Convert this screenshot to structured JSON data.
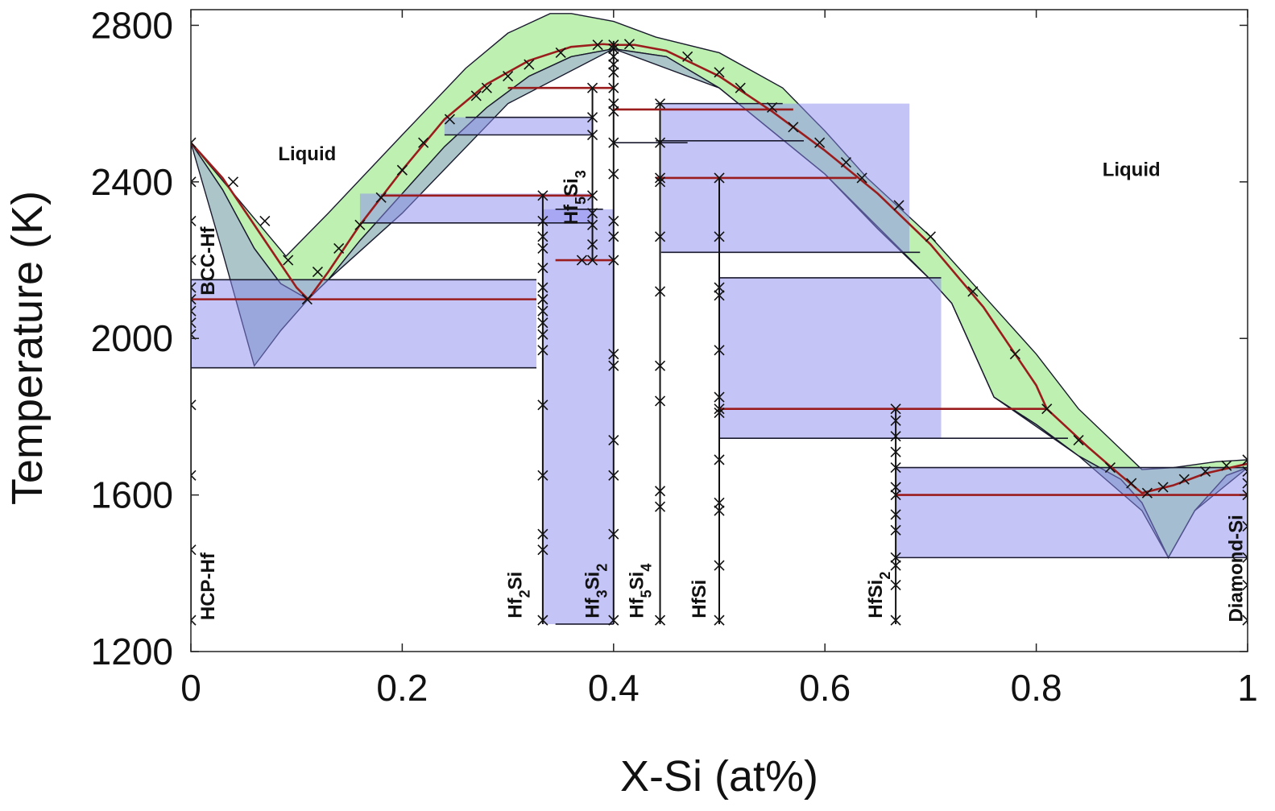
{
  "chart_data": {
    "type": "line",
    "title": "",
    "xlabel": "X-Si (at%)",
    "ylabel": "Temperature (K)",
    "xlim": [
      0,
      1
    ],
    "ylim": [
      1200,
      2840
    ],
    "xticks": [
      {
        "v": 0,
        "label": "0"
      },
      {
        "v": 0.2,
        "label": "0.2"
      },
      {
        "v": 0.4,
        "label": "0.4"
      },
      {
        "v": 0.6,
        "label": "0.6"
      },
      {
        "v": 0.8,
        "label": "0.8"
      },
      {
        "v": 1,
        "label": "1"
      }
    ],
    "yticks": [
      {
        "v": 1200,
        "label": "1200"
      },
      {
        "v": 1600,
        "label": "1600"
      },
      {
        "v": 2000,
        "label": "2000"
      },
      {
        "v": 2400,
        "label": "2400"
      },
      {
        "v": 2800,
        "label": "2800"
      }
    ],
    "grid": false,
    "colors": {
      "uncertainty_band": "#b7f0a8",
      "tie_region": "#8a8af0",
      "overlap": "#8fb1b6",
      "boundary": "#9b1c1c",
      "outline": "#1a1a2e",
      "marker": "#111111"
    },
    "region_labels": [
      {
        "text": "Liquid",
        "x": 0.11,
        "y": 2455
      },
      {
        "text": "Liquid",
        "x": 0.89,
        "y": 2415
      }
    ],
    "phase_labels": [
      {
        "text": "HCP-Hf",
        "main": "HCP-Hf",
        "x": 0.022,
        "y": 1280,
        "ymax": 1480
      },
      {
        "text": "BCC-Hf",
        "main": "BCC-Hf",
        "x": 0.022,
        "y": 2110,
        "ymax": 2330
      },
      {
        "text": "Hf2Si",
        "parts": [
          "Hf",
          "2",
          "Si"
        ],
        "x": 0.313,
        "y": 1285
      },
      {
        "text": "Hf3Si2",
        "parts": [
          "Hf",
          "3",
          "Si",
          "2"
        ],
        "x": 0.386,
        "y": 1285
      },
      {
        "text": "Hf5Si3",
        "parts": [
          "Hf",
          "5",
          "Si",
          "3"
        ],
        "x": 0.366,
        "y": 2290
      },
      {
        "text": "Hf5Si4",
        "parts": [
          "Hf",
          "5",
          "Si",
          "4"
        ],
        "x": 0.428,
        "y": 1285
      },
      {
        "text": "HfSi",
        "main": "HfSi",
        "x": 0.487,
        "y": 1285
      },
      {
        "text": "HfSi2",
        "parts": [
          "Hf",
          "Si",
          "2"
        ],
        "x": 0.654,
        "y": 1285
      },
      {
        "text": "Diamond-Si",
        "main": "Diamond-Si",
        "x": 0.995,
        "y": 1275
      }
    ],
    "series": [
      {
        "role": "liquidus",
        "values_x": [
          0,
          0.03,
          0.06,
          0.085,
          0.1,
          0.111,
          0.13,
          0.16,
          0.2,
          0.24,
          0.28,
          0.32,
          0.36,
          0.39,
          0.4,
          0.42,
          0.45,
          0.5,
          0.55,
          0.6,
          0.65,
          0.7,
          0.75,
          0.8,
          0.81,
          0.85,
          0.88,
          0.9,
          0.93,
          0.96,
          1.0
        ],
        "values_y": [
          2500,
          2410,
          2290,
          2190,
          2130,
          2100,
          2170,
          2290,
          2430,
          2560,
          2650,
          2710,
          2745,
          2752,
          2750,
          2750,
          2735,
          2670,
          2580,
          2480,
          2370,
          2240,
          2080,
          1880,
          1820,
          1720,
          1650,
          1605,
          1625,
          1655,
          1680
        ]
      },
      {
        "role": "uncertainty_upper",
        "values_x": [
          0,
          0.09,
          0.13,
          0.2,
          0.26,
          0.3,
          0.34,
          0.36,
          0.4,
          0.44,
          0.5,
          0.56,
          0.6,
          0.64,
          0.7,
          0.76,
          0.8,
          0.84,
          0.9,
          0.93,
          0.97,
          1.0
        ],
        "values_y": [
          2500,
          2210,
          2320,
          2520,
          2690,
          2780,
          2830,
          2830,
          2810,
          2770,
          2730,
          2640,
          2530,
          2410,
          2260,
          2080,
          1960,
          1820,
          1665,
          1670,
          1685,
          1690
        ]
      },
      {
        "role": "uncertainty_lower",
        "values_x": [
          0,
          0.03,
          0.06,
          0.085,
          0.111,
          0.13,
          0.16,
          0.2,
          0.24,
          0.28,
          0.32,
          0.36,
          0.4,
          0.45,
          0.5,
          0.55,
          0.6,
          0.65,
          0.7,
          0.72,
          0.76,
          0.8,
          0.84,
          0.88,
          0.9,
          0.925,
          0.95,
          0.98,
          1.0
        ],
        "values_y": [
          2500,
          2380,
          2230,
          2140,
          2100,
          2150,
          2250,
          2370,
          2490,
          2590,
          2670,
          2720,
          2740,
          2720,
          2640,
          2530,
          2420,
          2280,
          2150,
          2090,
          1850,
          1780,
          1700,
          1640,
          1580,
          1440,
          1560,
          1650,
          1670
        ]
      },
      {
        "role": "overlap_lower",
        "values_x": [
          0,
          0.03,
          0.06,
          0.085,
          0.111,
          0.13,
          0.2,
          0.3,
          0.4,
          0.5,
          0.6,
          0.7,
          0.72,
          0.76,
          0.84,
          0.9,
          0.925,
          0.95,
          1.0
        ],
        "values_y": [
          2500,
          2220,
          1930,
          2020,
          2100,
          2150,
          2320,
          2600,
          2740,
          2640,
          2420,
          2150,
          2090,
          1850,
          1700,
          1560,
          1440,
          1560,
          1670
        ]
      }
    ],
    "tie_regions": [
      {
        "x0": 0.0,
        "x1": 0.327,
        "y0": 1925,
        "y1": 2150
      },
      {
        "x0": 0.16,
        "x1": 0.38,
        "y0": 2295,
        "y1": 2370
      },
      {
        "x0": 0.24,
        "x1": 0.38,
        "y0": 2520,
        "y1": 2565
      },
      {
        "x0": 0.333,
        "x1": 0.4,
        "y0": 1270,
        "y1": 2330
      },
      {
        "x0": 0.445,
        "x1": 0.68,
        "y0": 2220,
        "y1": 2600
      },
      {
        "x0": 0.5,
        "x1": 0.71,
        "y0": 1745,
        "y1": 2155
      },
      {
        "x0": 0.667,
        "x1": 1.0,
        "y0": 1440,
        "y1": 1670
      }
    ],
    "invariant_lines": [
      {
        "x0": 0.0,
        "x1": 0.327,
        "y": 2100
      },
      {
        "x0": 0.18,
        "x1": 0.38,
        "y": 2365
      },
      {
        "x0": 0.3,
        "x1": 0.4,
        "y": 2640
      },
      {
        "x0": 0.345,
        "x1": 0.4,
        "y": 2200
      },
      {
        "x0": 0.4,
        "x1": 0.57,
        "y": 2585
      },
      {
        "x0": 0.44,
        "x1": 0.63,
        "y": 2410
      },
      {
        "x0": 0.5,
        "x1": 0.81,
        "y": 1820
      },
      {
        "x0": 0.667,
        "x1": 1.0,
        "y": 1600
      }
    ],
    "outline_lines": [
      {
        "x0": 0.0,
        "x1": 0.327,
        "y": 1925
      },
      {
        "x0": 0.0,
        "x1": 0.327,
        "y": 2150
      },
      {
        "x0": 0.16,
        "x1": 0.38,
        "y": 2295
      },
      {
        "x0": 0.24,
        "x1": 0.38,
        "y": 2520
      },
      {
        "x0": 0.26,
        "x1": 0.38,
        "y": 2565
      },
      {
        "x0": 0.445,
        "x1": 0.69,
        "y": 2220
      },
      {
        "x0": 0.44,
        "x1": 0.56,
        "y": 2600
      },
      {
        "x0": 0.44,
        "x1": 0.58,
        "y": 2505
      },
      {
        "x0": 0.5,
        "x1": 0.71,
        "y": 2155
      },
      {
        "x0": 0.5,
        "x1": 0.83,
        "y": 1745
      },
      {
        "x0": 0.667,
        "x1": 1.0,
        "y": 1670
      },
      {
        "x0": 0.667,
        "x1": 1.0,
        "y": 1440
      },
      {
        "x0": 0.345,
        "x1": 0.4,
        "y": 1270
      },
      {
        "x0": 0.345,
        "x1": 0.39,
        "y": 2330
      },
      {
        "x0": 0.4,
        "x1": 0.47,
        "y": 2500
      }
    ],
    "compound_lines": [
      {
        "x": 0.333,
        "y0": 1270,
        "y1": 2370
      },
      {
        "x": 0.38,
        "y0": 2200,
        "y1": 2640
      },
      {
        "x": 0.4,
        "y0": 1270,
        "y1": 2760
      },
      {
        "x": 0.444,
        "y0": 1270,
        "y1": 2600
      },
      {
        "x": 0.5,
        "y0": 1270,
        "y1": 2410
      },
      {
        "x": 0.667,
        "y0": 1270,
        "y1": 1820
      },
      {
        "x": 1.0,
        "y0": 1270,
        "y1": 1690
      },
      {
        "x": 0.0,
        "y0": 1270,
        "y1": 2500
      }
    ],
    "markers": [
      [
        0,
        1280
      ],
      [
        0,
        1460
      ],
      [
        0,
        1650
      ],
      [
        0,
        1830
      ],
      [
        0,
        2010
      ],
      [
        0,
        2040
      ],
      [
        0,
        2070
      ],
      [
        0,
        2100
      ],
      [
        0,
        2130
      ],
      [
        0,
        2200
      ],
      [
        0,
        2300
      ],
      [
        0,
        2400
      ],
      [
        0,
        2500
      ],
      [
        0.04,
        2400
      ],
      [
        0.07,
        2300
      ],
      [
        0.092,
        2200
      ],
      [
        0.11,
        2100
      ],
      [
        0.12,
        2170
      ],
      [
        0.14,
        2230
      ],
      [
        0.16,
        2290
      ],
      [
        0.18,
        2360
      ],
      [
        0.2,
        2430
      ],
      [
        0.22,
        2500
      ],
      [
        0.245,
        2560
      ],
      [
        0.27,
        2620
      ],
      [
        0.28,
        2640
      ],
      [
        0.3,
        2670
      ],
      [
        0.32,
        2700
      ],
      [
        0.35,
        2730
      ],
      [
        0.385,
        2750
      ],
      [
        0.415,
        2752
      ],
      [
        0.47,
        2720
      ],
      [
        0.5,
        2680
      ],
      [
        0.52,
        2640
      ],
      [
        0.55,
        2590
      ],
      [
        0.57,
        2540
      ],
      [
        0.595,
        2500
      ],
      [
        0.62,
        2450
      ],
      [
        0.635,
        2410
      ],
      [
        0.67,
        2340
      ],
      [
        0.7,
        2260
      ],
      [
        0.74,
        2120
      ],
      [
        0.78,
        1960
      ],
      [
        0.81,
        1820
      ],
      [
        0.84,
        1740
      ],
      [
        0.87,
        1670
      ],
      [
        0.89,
        1630
      ],
      [
        0.905,
        1605
      ],
      [
        0.92,
        1620
      ],
      [
        0.94,
        1640
      ],
      [
        0.96,
        1660
      ],
      [
        0.98,
        1675
      ],
      [
        0.333,
        1280
      ],
      [
        0.333,
        1460
      ],
      [
        0.333,
        1500
      ],
      [
        0.333,
        1650
      ],
      [
        0.333,
        1830
      ],
      [
        0.333,
        1970
      ],
      [
        0.333,
        2010
      ],
      [
        0.333,
        2040
      ],
      [
        0.333,
        2070
      ],
      [
        0.333,
        2100
      ],
      [
        0.333,
        2130
      ],
      [
        0.333,
        2180
      ],
      [
        0.333,
        2230
      ],
      [
        0.333,
        2260
      ],
      [
        0.333,
        2300
      ],
      [
        0.333,
        2365
      ],
      [
        0.38,
        2200
      ],
      [
        0.38,
        2240
      ],
      [
        0.38,
        2290
      ],
      [
        0.38,
        2320
      ],
      [
        0.38,
        2365
      ],
      [
        0.38,
        2520
      ],
      [
        0.38,
        2565
      ],
      [
        0.38,
        2640
      ],
      [
        0.37,
        2200
      ],
      [
        0.4,
        1280
      ],
      [
        0.4,
        1500
      ],
      [
        0.4,
        1650
      ],
      [
        0.4,
        1740
      ],
      [
        0.4,
        1930
      ],
      [
        0.4,
        1960
      ],
      [
        0.4,
        2200
      ],
      [
        0.4,
        2260
      ],
      [
        0.4,
        2300
      ],
      [
        0.4,
        2420
      ],
      [
        0.4,
        2500
      ],
      [
        0.4,
        2580
      ],
      [
        0.4,
        2600
      ],
      [
        0.4,
        2640
      ],
      [
        0.4,
        2680
      ],
      [
        0.4,
        2700
      ],
      [
        0.4,
        2720
      ],
      [
        0.4,
        2740
      ],
      [
        0.4,
        2750
      ],
      [
        0.444,
        1280
      ],
      [
        0.444,
        1570
      ],
      [
        0.444,
        1610
      ],
      [
        0.444,
        1840
      ],
      [
        0.444,
        1930
      ],
      [
        0.444,
        2120
      ],
      [
        0.444,
        2260
      ],
      [
        0.444,
        2400
      ],
      [
        0.444,
        2410
      ],
      [
        0.444,
        2500
      ],
      [
        0.444,
        2600
      ],
      [
        0.5,
        1280
      ],
      [
        0.5,
        1420
      ],
      [
        0.5,
        1560
      ],
      [
        0.5,
        1580
      ],
      [
        0.5,
        1690
      ],
      [
        0.5,
        1810
      ],
      [
        0.5,
        1820
      ],
      [
        0.5,
        1850
      ],
      [
        0.5,
        1970
      ],
      [
        0.5,
        2110
      ],
      [
        0.5,
        2130
      ],
      [
        0.5,
        2260
      ],
      [
        0.5,
        2410
      ],
      [
        0.667,
        1280
      ],
      [
        0.667,
        1370
      ],
      [
        0.667,
        1420
      ],
      [
        0.667,
        1440
      ],
      [
        0.667,
        1510
      ],
      [
        0.667,
        1550
      ],
      [
        0.667,
        1600
      ],
      [
        0.667,
        1620
      ],
      [
        0.667,
        1670
      ],
      [
        0.667,
        1710
      ],
      [
        0.667,
        1750
      ],
      [
        0.667,
        1790
      ],
      [
        0.667,
        1820
      ],
      [
        1.0,
        1280
      ],
      [
        1.0,
        1370
      ],
      [
        1.0,
        1440
      ],
      [
        1.0,
        1520
      ],
      [
        1.0,
        1600
      ],
      [
        1.0,
        1630
      ],
      [
        1.0,
        1660
      ],
      [
        1.0,
        1690
      ]
    ]
  }
}
